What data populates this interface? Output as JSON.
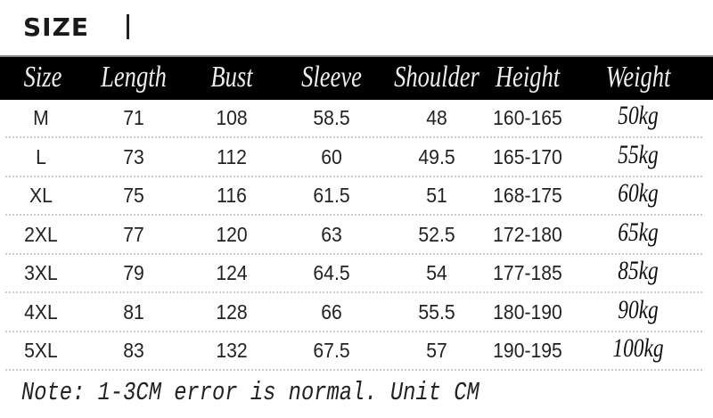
{
  "title": "SIZE",
  "columns": [
    "Size",
    "Length",
    "Bust",
    "Sleeve",
    "Shoulder",
    "Height",
    "Weight"
  ],
  "rows": [
    [
      "M",
      "71",
      "108",
      "58.5",
      "48",
      "160-165",
      "50kg"
    ],
    [
      "L",
      "73",
      "112",
      "60",
      "49.5",
      "165-170",
      "55kg"
    ],
    [
      "XL",
      "75",
      "116",
      "61.5",
      "51",
      "168-175",
      "60kg"
    ],
    [
      "2XL",
      "77",
      "120",
      "63",
      "52.5",
      "172-180",
      "65kg"
    ],
    [
      "3XL",
      "79",
      "124",
      "64.5",
      "54",
      "177-185",
      "85kg"
    ],
    [
      "4XL",
      "81",
      "128",
      "66",
      "55.5",
      "180-190",
      "90kg"
    ],
    [
      "5XL",
      "83",
      "132",
      "67.5",
      "57",
      "190-195",
      "100kg"
    ]
  ],
  "note": "Note: 1-3CM error is normal. Unit CM",
  "colors": {
    "header_bg": "#000000",
    "header_text": "#eeeeee",
    "text": "#222222"
  }
}
